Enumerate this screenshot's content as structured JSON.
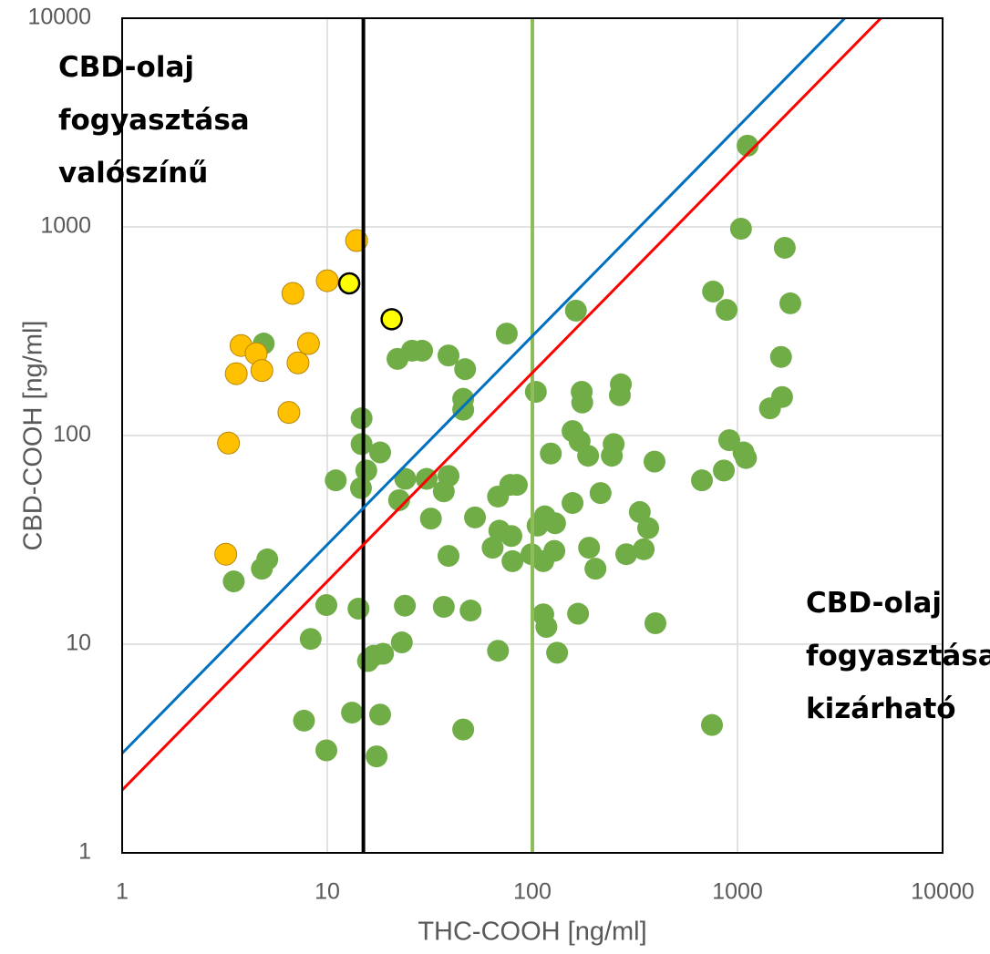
{
  "chart_data": {
    "type": "scatter",
    "x_label": "THC-COOH [ng/ml]",
    "y_label": "CBD-COOH [ng/ml]",
    "log_x": true,
    "log_y": true,
    "grid": true,
    "xlim": [
      1,
      10000
    ],
    "ylim": [
      1,
      10000
    ],
    "xticks": [
      1,
      10,
      100,
      1000,
      10000
    ],
    "yticks": [
      1,
      10,
      100,
      1000,
      10000
    ],
    "annotations": [
      {
        "lines": [
          "CBD-olaj",
          "fogyasztása",
          "valószínű"
        ],
        "corner": "top-left"
      },
      {
        "lines": [
          "CBD-olaj",
          "fogyasztása",
          "kizárható"
        ],
        "corner": "bottom-right"
      }
    ],
    "diagonal_lines": [
      {
        "slope": 3,
        "color": "#0070c0"
      },
      {
        "slope": 2,
        "color": "#ff0000"
      }
    ],
    "vertical_lines": [
      {
        "x": 15,
        "color": "#000000"
      },
      {
        "x": 100,
        "color": "#8fbc5a"
      }
    ],
    "series": [
      {
        "color": "#70ad47",
        "edge": "none",
        "x": [
          1120,
          1040,
          1700,
          1810,
          760,
          885,
          163,
          75,
          4.9,
          25.9,
          29,
          22,
          39,
          47,
          46,
          46,
          104,
          174,
          175,
          270,
          267,
          1650,
          1440,
          1630,
          14.7,
          14.7,
          18.1,
          157,
          170,
          249,
          244,
          187,
          123,
          912,
          1070,
          1100,
          394,
          15.5,
          11,
          14.6,
          24,
          39,
          30.5,
          37,
          22.4,
          78,
          84,
          68,
          215,
          157,
          334,
          671,
          858,
          32,
          52.5,
          115,
          106,
          129,
          69,
          79,
          64,
          99,
          128,
          189,
          80,
          113,
          287,
          349,
          367,
          39,
          5.1,
          4.8,
          3.5,
          203,
          9.9,
          14.2,
          23.9,
          37,
          50,
          113,
          167,
          117,
          398,
          8.3,
          23.1,
          68,
          132,
          15.8,
          18.7,
          16.8,
          7.7,
          13.2,
          18.1,
          46,
          751,
          9.9,
          17.4
        ],
        "y": [
          2450,
          980,
          794,
          430,
          490,
          400,
          397,
          308,
          276,
          255,
          255,
          233,
          242,
          208,
          150,
          133,
          162,
          162,
          144,
          176,
          156,
          153,
          135,
          238,
          121,
          91,
          83,
          105,
          94,
          91,
          80,
          80,
          82,
          95,
          83,
          78,
          75,
          68,
          61,
          56,
          62,
          64,
          62,
          54,
          49,
          58,
          58,
          51,
          53,
          47.5,
          43,
          61,
          68,
          40,
          40.5,
          41,
          37,
          38,
          35,
          33,
          29,
          27,
          28,
          29,
          25,
          25,
          27,
          28.5,
          36,
          26.5,
          25.5,
          23,
          20,
          23,
          15.4,
          14.8,
          15.3,
          15.1,
          14.5,
          13.9,
          14,
          12.1,
          12.6,
          10.6,
          10.2,
          9.3,
          9.1,
          8.3,
          9.0,
          8.8,
          4.3,
          4.7,
          4.6,
          3.9,
          4.1,
          3.1,
          2.9
        ]
      },
      {
        "color": "#ffc000",
        "edge": "#b8860b",
        "x": [
          13.9,
          10,
          6.8,
          3.8,
          4.5,
          3.6,
          4.8,
          8.1,
          7.2,
          6.5,
          3.3,
          3.2
        ],
        "y": [
          860,
          552,
          480,
          270,
          247,
          198,
          205,
          276,
          223,
          129,
          92,
          27
        ]
      },
      {
        "color": "#ffff00",
        "edge": "#000000",
        "x": [
          12.8,
          20.6
        ],
        "y": [
          536,
          361
        ]
      }
    ]
  }
}
